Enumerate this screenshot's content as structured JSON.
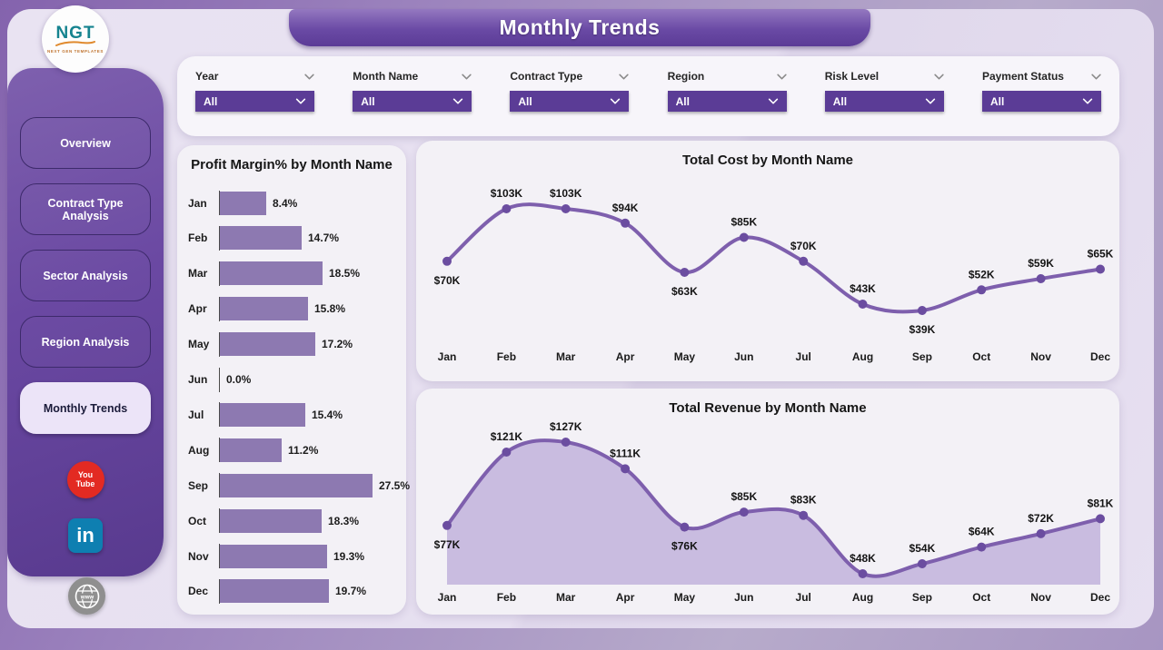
{
  "header": {
    "title": "Monthly Trends"
  },
  "logo": {
    "text": "NGT",
    "subtext": "NEXT GEN TEMPLATES"
  },
  "sidebar": {
    "items": [
      {
        "label": "Overview",
        "active": false
      },
      {
        "label": "Contract Type Analysis",
        "active": false
      },
      {
        "label": "Sector Analysis",
        "active": false
      },
      {
        "label": "Region Analysis",
        "active": false
      },
      {
        "label": "Monthly Trends",
        "active": true
      }
    ],
    "social": {
      "youtube_lines": [
        "You",
        "Tube"
      ],
      "linkedin_text": "in",
      "globe_text": "www"
    }
  },
  "filters": [
    {
      "label": "Year",
      "value": "All"
    },
    {
      "label": "Month Name",
      "value": "All"
    },
    {
      "label": "Contract Type",
      "value": "All"
    },
    {
      "label": "Region",
      "value": "All"
    },
    {
      "label": "Risk Level",
      "value": "All"
    },
    {
      "label": "Payment Status",
      "value": "All"
    }
  ],
  "chart_data": [
    {
      "type": "bar",
      "title": "Profit Margin% by Month Name",
      "orientation": "horizontal",
      "categories": [
        "Jan",
        "Feb",
        "Mar",
        "Apr",
        "May",
        "Jun",
        "Jul",
        "Aug",
        "Sep",
        "Oct",
        "Nov",
        "Dec"
      ],
      "values": [
        8.4,
        14.7,
        18.5,
        15.8,
        17.2,
        0.0,
        15.4,
        11.2,
        27.5,
        18.3,
        19.3,
        19.7
      ],
      "labels": [
        "8.4%",
        "14.7%",
        "18.5%",
        "15.8%",
        "17.2%",
        "0.0%",
        "15.4%",
        "11.2%",
        "27.5%",
        "18.3%",
        "19.3%",
        "19.7%"
      ],
      "xlabel": "",
      "ylabel": "",
      "value_unit": "%",
      "xlim": [
        0,
        30
      ],
      "grid": false
    },
    {
      "type": "line",
      "title": "Total Cost by Month Name",
      "categories": [
        "Jan",
        "Feb",
        "Mar",
        "Apr",
        "May",
        "Jun",
        "Jul",
        "Aug",
        "Sep",
        "Oct",
        "Nov",
        "Dec"
      ],
      "values": [
        70,
        103,
        103,
        94,
        63,
        85,
        70,
        43,
        39,
        52,
        59,
        65
      ],
      "labels": [
        "$70K",
        "$103K",
        "$103K",
        "$94K",
        "$63K",
        "$85K",
        "$70K",
        "$43K",
        "$39K",
        "$52K",
        "$59K",
        "$65K"
      ],
      "labels_below_points": [
        0,
        4,
        8
      ],
      "xlabel": "",
      "ylabel": "",
      "value_unit": "$K",
      "grid": false,
      "legend": "none"
    },
    {
      "type": "area",
      "title": "Total Revenue by Month Name",
      "categories": [
        "Jan",
        "Feb",
        "Mar",
        "Apr",
        "May",
        "Jun",
        "Jul",
        "Aug",
        "Sep",
        "Oct",
        "Nov",
        "Dec"
      ],
      "values": [
        77,
        121,
        127,
        111,
        76,
        85,
        83,
        48,
        54,
        64,
        72,
        81
      ],
      "labels": [
        "$77K",
        "$121K",
        "$127K",
        "$111K",
        "$76K",
        "$85K",
        "$83K",
        "$48K",
        "$54K",
        "$64K",
        "$72K",
        "$81K"
      ],
      "labels_below_points": [
        0,
        4
      ],
      "xlabel": "",
      "ylabel": "",
      "value_unit": "$K",
      "grid": false,
      "legend": "none"
    }
  ],
  "colors": {
    "accent_purple": "#5b3c96",
    "banner_top": "#9478c0",
    "banner_bottom": "#5b3b96",
    "bar_fill": "#8d79b1",
    "line_stroke": "#7e5fad",
    "marker_fill": "#6b4da0",
    "area_fill": "#c9bce0",
    "youtube_red": "#e32a22",
    "linkedin_blue": "#0e7fb1",
    "globe_gray": "#8f8f8f",
    "card_bg": "#f3f1f6",
    "panel_bg": "#e7e1f0",
    "label_text": "#141414"
  }
}
